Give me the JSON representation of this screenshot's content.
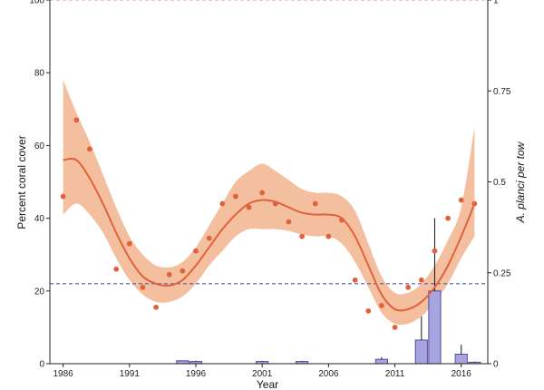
{
  "chart_data": {
    "type": "scatter",
    "xlabel": "Year",
    "ylabel_left": "Percent coral cover",
    "ylabel_right": "A. planci per tow",
    "x_ticks": [
      1986,
      1991,
      1996,
      2001,
      2006,
      2011,
      2016
    ],
    "y_left_ticks": [
      0,
      20,
      40,
      60,
      80,
      100
    ],
    "y_right_ticks": [
      0,
      0.25,
      0.5,
      0.75,
      1
    ],
    "y_right_tick_labels": [
      "0",
      "0.25",
      "0.5",
      "0.75",
      "1"
    ],
    "xlim": [
      1985,
      2018
    ],
    "ylim_left": [
      0,
      100
    ],
    "ylim_right": [
      0,
      1
    ],
    "colors": {
      "coral": "#E0623A",
      "band": "#F2B48E",
      "bars": "#A7A4E0",
      "bars_edge": "#4D4AA0",
      "upper_line": "#F08F8F",
      "threshold_line": "#4A5FA8"
    },
    "reference_lines": [
      {
        "name": "upper",
        "axis": "left",
        "y": 100
      },
      {
        "name": "threshold",
        "axis": "right",
        "y": 0.22
      }
    ],
    "series": [
      {
        "role": "observed-coral-cover",
        "axis": "left",
        "mark": "point",
        "x": [
          1986,
          1987,
          1988,
          1990,
          1991,
          1992,
          1993,
          1994,
          1995,
          1996,
          1997,
          1998,
          1999,
          2000,
          2001,
          2002,
          2003,
          2004,
          2005,
          2006,
          2007,
          2008,
          2009,
          2010,
          2011,
          2012,
          2013,
          2014,
          2015,
          2016,
          2017
        ],
        "y": [
          46,
          67,
          59,
          26,
          33,
          21,
          15.5,
          24.5,
          25.5,
          31,
          34.5,
          44,
          46,
          43,
          47,
          44,
          39,
          35,
          44,
          35,
          39.5,
          23,
          14.5,
          16,
          10,
          21,
          23,
          31,
          40,
          45,
          44
        ]
      },
      {
        "role": "smoothed-trend",
        "axis": "left",
        "mark": "line",
        "x": [
          1986,
          1987,
          1988,
          1989,
          1990,
          1991,
          1992,
          1993,
          1994,
          1995,
          1996,
          1997,
          1998,
          1999,
          2000,
          2001,
          2002,
          2003,
          2004,
          2005,
          2006,
          2007,
          2008,
          2009,
          2010,
          2011,
          2012,
          2013,
          2014,
          2015,
          2016,
          2017
        ],
        "y": [
          56,
          56,
          51,
          44,
          36,
          29,
          24,
          22,
          21.5,
          23,
          27,
          32,
          37,
          41,
          44,
          45,
          44.5,
          43,
          41.5,
          41,
          41,
          40,
          35,
          27,
          19,
          15,
          15,
          17,
          21,
          27,
          35,
          44
        ]
      },
      {
        "role": "confidence-band-lower",
        "axis": "left",
        "mark": "band",
        "x": [
          1986,
          1987,
          1988,
          1989,
          1990,
          1991,
          1992,
          1993,
          1994,
          1995,
          1996,
          1997,
          1998,
          1999,
          2000,
          2001,
          2002,
          2003,
          2004,
          2005,
          2006,
          2007,
          2008,
          2009,
          2010,
          2011,
          2012,
          2013,
          2014,
          2015,
          2016,
          2017
        ],
        "y": [
          41,
          44,
          41,
          36,
          29,
          23,
          19,
          17,
          17,
          18.5,
          22,
          27,
          31,
          35,
          37,
          37,
          37,
          36.5,
          35.5,
          35,
          35,
          33,
          28,
          21,
          14,
          11,
          11,
          13,
          17,
          22,
          29,
          35
        ]
      },
      {
        "role": "confidence-band-upper",
        "axis": "left",
        "mark": "band",
        "x": [
          1986,
          1987,
          1988,
          1989,
          1990,
          1991,
          1992,
          1993,
          1994,
          1995,
          1996,
          1997,
          1998,
          1999,
          2000,
          2001,
          2002,
          2003,
          2004,
          2005,
          2006,
          2007,
          2008,
          2009,
          2010,
          2011,
          2012,
          2013,
          2014,
          2015,
          2016,
          2017
        ],
        "y": [
          78,
          69,
          61,
          52,
          43,
          35,
          30,
          27,
          26.5,
          28,
          32,
          38,
          44,
          50,
          53,
          55,
          53,
          50.5,
          48,
          47,
          47,
          46,
          42,
          33,
          24,
          19.5,
          19.5,
          22,
          27,
          34,
          43,
          65
        ]
      },
      {
        "role": "a-planci-per-tow",
        "axis": "right",
        "mark": "bar",
        "x": [
          1995,
          1996,
          2001,
          2004,
          2010,
          2013,
          2014,
          2016,
          2017
        ],
        "y": [
          0.008,
          0.006,
          0.006,
          0.006,
          0.012,
          0.065,
          0.2,
          0.026,
          0.004
        ],
        "error_upper": [
          0.008,
          0.008,
          0.008,
          0.008,
          0.018,
          0.13,
          0.4,
          0.052,
          0.006
        ]
      }
    ]
  }
}
